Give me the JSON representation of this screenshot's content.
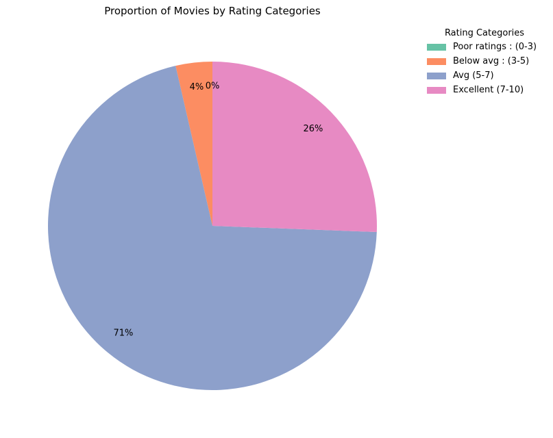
{
  "chart_data": {
    "type": "pie",
    "title": "Proportion of Movies by Rating Categories",
    "legend": {
      "title": "Rating Categories",
      "placement": "top-right outside"
    },
    "start_angle_deg": 90,
    "direction": "counterclockwise",
    "slices": [
      {
        "label": "Poor ratings : (0-3)",
        "value": 0.0,
        "pct_label": "0%",
        "color": "#66c2a5"
      },
      {
        "label": "Below avg : (3-5)",
        "value": 3.6,
        "pct_label": "4%",
        "color": "#fc8d62"
      },
      {
        "label": "Avg (5-7)",
        "value": 70.8,
        "pct_label": "71%",
        "color": "#8da0cb"
      },
      {
        "label": "Excellent (7-10)",
        "value": 25.6,
        "pct_label": "26%",
        "color": "#e78ac3"
      }
    ]
  }
}
